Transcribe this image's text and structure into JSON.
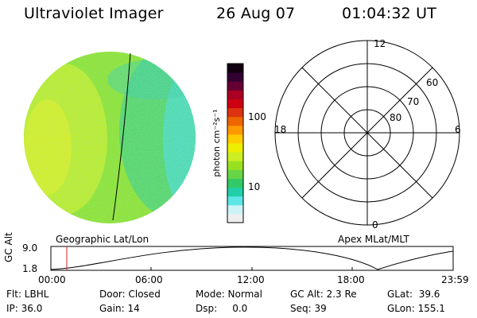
{
  "header": {
    "instrument": "Ultraviolet Imager",
    "date": "26 Aug 07",
    "time": "01:04:32 UT"
  },
  "colorbar": {
    "unit_label": "photon cm⁻²s⁻¹",
    "ticks": [
      "100",
      "10"
    ],
    "colors": [
      "#eeeeee",
      "#ccf3f6",
      "#5ee5e5",
      "#22d0a8",
      "#33c966",
      "#66d544",
      "#99e022",
      "#ccee22",
      "#eeee00",
      "#ffcc00",
      "#ff9900",
      "#ee6600",
      "#dd3311",
      "#cc0011",
      "#aa0022",
      "#660033",
      "#330033",
      "#110011"
    ]
  },
  "polar_plot": {
    "clock_labels": [
      "12",
      "18",
      "6",
      "0"
    ],
    "lat_labels": [
      "60",
      "70",
      "80"
    ]
  },
  "image_panel": {
    "left_label": "Geographic Lat/Lon",
    "right_label": "Apex MLat/MLT"
  },
  "altitude_plot": {
    "ylabel": "GC Alt",
    "yticks": [
      "9.0",
      "1.8"
    ],
    "xticks": [
      "00:00",
      "06:00",
      "12:00",
      "18:00",
      "23:59"
    ],
    "marker_time": "01:04:32"
  },
  "info": {
    "flt": "Flt: LBHL",
    "door": "Door: Closed",
    "mode": "Mode: Normal",
    "gc_alt": "GC Alt: 2.3 Re",
    "glat": "GLat:  39.6",
    "ip": "IP: 36.0",
    "gain": "Gain: 14",
    "dsp": "Dsp:     0.0",
    "seq": "Seq: 39",
    "glon": "GLon: 155.1"
  }
}
